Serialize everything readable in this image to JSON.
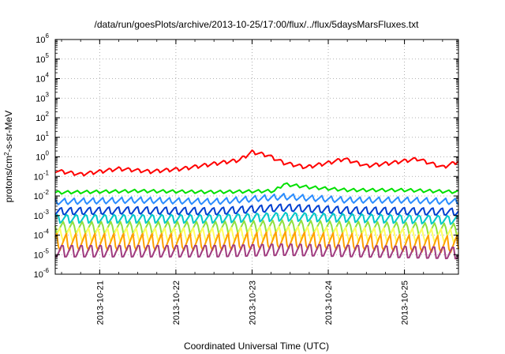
{
  "chart_data": {
    "type": "line",
    "title": "/data/run/goesPlots/archive/2013-10-25/17:00/flux/../flux/5daysMarsFluxes.txt",
    "xlabel": "Coordinated Universal Time (UTC)",
    "ylabel": "protons/cm²-s-sr-MeV",
    "ylabel_parts": {
      "pre": "protons/cm",
      "sup": "2",
      "post": "-s-sr-MeV"
    },
    "yscale": "log",
    "ylim": [
      1e-06,
      1000000.0
    ],
    "y_ticks": [
      {
        "base": "10",
        "exp": "-6"
      },
      {
        "base": "10",
        "exp": "-5"
      },
      {
        "base": "10",
        "exp": "-4"
      },
      {
        "base": "10",
        "exp": "-3"
      },
      {
        "base": "10",
        "exp": "-2"
      },
      {
        "base": "10",
        "exp": "-1"
      },
      {
        "base": "10",
        "exp": "0"
      },
      {
        "base": "10",
        "exp": "1"
      },
      {
        "base": "10",
        "exp": "2"
      },
      {
        "base": "10",
        "exp": "3"
      },
      {
        "base": "10",
        "exp": "4"
      },
      {
        "base": "10",
        "exp": "5"
      },
      {
        "base": "10",
        "exp": "6"
      }
    ],
    "xlim": [
      "2013-10-20T10:00",
      "2013-10-25T17:00"
    ],
    "x_ticks": [
      "2013-10-21",
      "2013-10-22",
      "2013-10-23",
      "2013-10-24",
      "2013-10-25"
    ],
    "grid": true,
    "legend": "none",
    "series": [
      {
        "color": "#ff0000",
        "anchors": [
          [
            "2013-10-20T10:00",
            0.2
          ],
          [
            "2013-10-20T18:00",
            0.13
          ],
          [
            "2013-10-21T06:00",
            0.25
          ],
          [
            "2013-10-21T16:00",
            0.18
          ],
          [
            "2013-10-22T02:00",
            0.25
          ],
          [
            "2013-10-22T12:00",
            0.45
          ],
          [
            "2013-10-22T20:00",
            0.7
          ],
          [
            "2013-10-23T00:00",
            1.8
          ],
          [
            "2013-10-23T05:00",
            1.2
          ],
          [
            "2013-10-23T10:00",
            0.5
          ],
          [
            "2013-10-23T17:00",
            0.3
          ],
          [
            "2013-10-24T00:00",
            0.5
          ],
          [
            "2013-10-24T05:00",
            0.8
          ],
          [
            "2013-10-24T12:00",
            0.35
          ],
          [
            "2013-10-24T20:00",
            0.5
          ],
          [
            "2013-10-25T04:00",
            0.8
          ],
          [
            "2013-10-25T12:00",
            0.3
          ],
          [
            "2013-10-25T17:00",
            0.6
          ]
        ],
        "osc": 1.6,
        "period_h": 3
      },
      {
        "color": "#00e000",
        "anchors": [
          [
            "2013-10-20T10:00",
            0.015
          ],
          [
            "2013-10-21T12:00",
            0.018
          ],
          [
            "2013-10-22T12:00",
            0.016
          ],
          [
            "2013-10-23T07:00",
            0.018
          ],
          [
            "2013-10-23T10:00",
            0.04
          ],
          [
            "2013-10-23T18:00",
            0.028
          ],
          [
            "2013-10-24T06:00",
            0.02
          ],
          [
            "2013-10-25T00:00",
            0.02
          ],
          [
            "2013-10-25T17:00",
            0.016
          ]
        ],
        "osc": 1.5,
        "period_h": 3
      },
      {
        "color": "#2a8cff",
        "anchors": [
          [
            "2013-10-20T10:00",
            0.005
          ],
          [
            "2013-10-21T12:00",
            0.006
          ],
          [
            "2013-10-22T12:00",
            0.005
          ],
          [
            "2013-10-23T10:00",
            0.009
          ],
          [
            "2013-10-24T06:00",
            0.006
          ],
          [
            "2013-10-25T00:00",
            0.006
          ],
          [
            "2013-10-25T17:00",
            0.005
          ]
        ],
        "osc": 2.2,
        "period_h": 3
      },
      {
        "color": "#0040d0",
        "anchors": [
          [
            "2013-10-20T10:00",
            0.0016
          ],
          [
            "2013-10-21T12:00",
            0.0018
          ],
          [
            "2013-10-22T12:00",
            0.0016
          ],
          [
            "2013-10-23T10:00",
            0.0025
          ],
          [
            "2013-10-24T06:00",
            0.0018
          ],
          [
            "2013-10-25T17:00",
            0.0015
          ]
        ],
        "osc": 3.0,
        "period_h": 3
      },
      {
        "color": "#00c8c8",
        "anchors": [
          [
            "2013-10-20T10:00",
            0.0007
          ],
          [
            "2013-10-22T12:00",
            0.0007
          ],
          [
            "2013-10-23T10:00",
            0.0009
          ],
          [
            "2013-10-25T17:00",
            0.0006
          ]
        ],
        "osc": 3.5,
        "period_h": 3
      },
      {
        "color": "#90e040",
        "anchors": [
          [
            "2013-10-20T10:00",
            0.00025
          ],
          [
            "2013-10-22T12:00",
            0.00025
          ],
          [
            "2013-10-23T10:00",
            0.0003
          ],
          [
            "2013-10-25T17:00",
            0.0002
          ]
        ],
        "osc": 5.0,
        "period_h": 3
      },
      {
        "color": "#ffff60",
        "anchors": [
          [
            "2013-10-20T10:00",
            0.0001
          ],
          [
            "2013-10-22T12:00",
            0.0001
          ],
          [
            "2013-10-23T10:00",
            0.00012
          ],
          [
            "2013-10-25T17:00",
            9e-05
          ]
        ],
        "osc": 6.0,
        "period_h": 3
      },
      {
        "color": "#ffa000",
        "anchors": [
          [
            "2013-10-20T10:00",
            4e-05
          ],
          [
            "2013-10-22T12:00",
            4e-05
          ],
          [
            "2013-10-23T10:00",
            5e-05
          ],
          [
            "2013-10-25T17:00",
            3e-05
          ]
        ],
        "osc": 10.0,
        "period_h": 3
      },
      {
        "color": "#a03c80",
        "anchors": [
          [
            "2013-10-20T10:00",
            1.5e-05
          ],
          [
            "2013-10-22T12:00",
            1.5e-05
          ],
          [
            "2013-10-23T10:00",
            1.8e-05
          ],
          [
            "2013-10-25T17:00",
            1.2e-05
          ]
        ],
        "osc": 7.0,
        "period_h": 3
      }
    ]
  }
}
